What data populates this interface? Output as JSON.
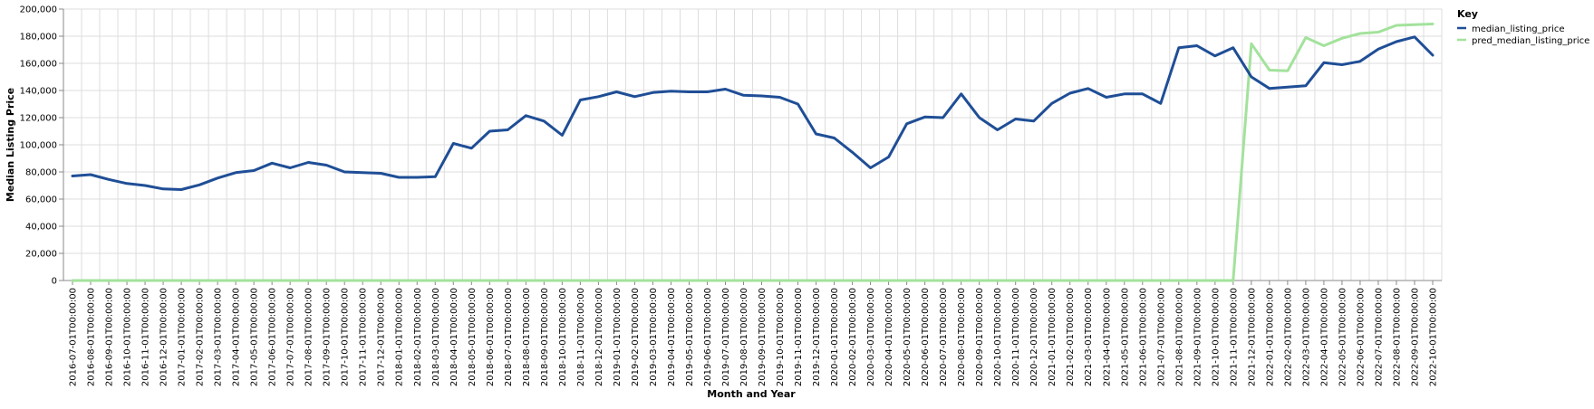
{
  "chart_data": {
    "type": "line",
    "xlabel": "Month and Year",
    "ylabel": "Median Listing Price",
    "ylim": [
      0,
      200000
    ],
    "yticks": [
      0,
      20000,
      40000,
      60000,
      80000,
      100000,
      120000,
      140000,
      160000,
      180000,
      200000
    ],
    "ytick_labels": [
      "0",
      "20,000",
      "40,000",
      "60,000",
      "80,000",
      "100,000",
      "120,000",
      "140,000",
      "160,000",
      "180,000",
      "200,000"
    ],
    "grid": true,
    "legend": {
      "title": "Key",
      "placement": "top-right"
    },
    "categories": [
      "2016-07-01T00:00:00",
      "2016-08-01T00:00:00",
      "2016-09-01T00:00:00",
      "2016-10-01T00:00:00",
      "2016-11-01T00:00:00",
      "2016-12-01T00:00:00",
      "2017-01-01T00:00:00",
      "2017-02-01T00:00:00",
      "2017-03-01T00:00:00",
      "2017-04-01T00:00:00",
      "2017-05-01T00:00:00",
      "2017-06-01T00:00:00",
      "2017-07-01T00:00:00",
      "2017-08-01T00:00:00",
      "2017-09-01T00:00:00",
      "2017-10-01T00:00:00",
      "2017-11-01T00:00:00",
      "2017-12-01T00:00:00",
      "2018-01-01T00:00:00",
      "2018-02-01T00:00:00",
      "2018-03-01T00:00:00",
      "2018-04-01T00:00:00",
      "2018-05-01T00:00:00",
      "2018-06-01T00:00:00",
      "2018-07-01T00:00:00",
      "2018-08-01T00:00:00",
      "2018-09-01T00:00:00",
      "2018-10-01T00:00:00",
      "2018-11-01T00:00:00",
      "2018-12-01T00:00:00",
      "2019-01-01T00:00:00",
      "2019-02-01T00:00:00",
      "2019-03-01T00:00:00",
      "2019-04-01T00:00:00",
      "2019-05-01T00:00:00",
      "2019-06-01T00:00:00",
      "2019-07-01T00:00:00",
      "2019-08-01T00:00:00",
      "2019-09-01T00:00:00",
      "2019-10-01T00:00:00",
      "2019-11-01T00:00:00",
      "2019-12-01T00:00:00",
      "2020-01-01T00:00:00",
      "2020-02-01T00:00:00",
      "2020-03-01T00:00:00",
      "2020-04-01T00:00:00",
      "2020-05-01T00:00:00",
      "2020-06-01T00:00:00",
      "2020-07-01T00:00:00",
      "2020-08-01T00:00:00",
      "2020-09-01T00:00:00",
      "2020-10-01T00:00:00",
      "2020-11-01T00:00:00",
      "2020-12-01T00:00:00",
      "2021-01-01T00:00:00",
      "2021-02-01T00:00:00",
      "2021-03-01T00:00:00",
      "2021-04-01T00:00:00",
      "2021-05-01T00:00:00",
      "2021-06-01T00:00:00",
      "2021-07-01T00:00:00",
      "2021-08-01T00:00:00",
      "2021-09-01T00:00:00",
      "2021-10-01T00:00:00",
      "2021-11-01T00:00:00",
      "2021-12-01T00:00:00",
      "2022-01-01T00:00:00",
      "2022-02-01T00:00:00",
      "2022-03-01T00:00:00",
      "2022-04-01T00:00:00",
      "2022-05-01T00:00:00",
      "2022-06-01T00:00:00",
      "2022-07-01T00:00:00",
      "2022-08-01T00:00:00",
      "2022-09-01T00:00:00",
      "2022-10-01T00:00:00"
    ],
    "series": [
      {
        "name": "median_listing_price",
        "color": "#1f4e96",
        "values": [
          77000,
          78000,
          74500,
          71500,
          70000,
          67500,
          67000,
          70500,
          75500,
          79500,
          81000,
          86500,
          83000,
          87000,
          85000,
          80000,
          79500,
          79000,
          76000,
          76000,
          76500,
          101000,
          97500,
          110000,
          111000,
          121500,
          117500,
          107000,
          133000,
          135500,
          139000,
          135500,
          138500,
          139500,
          139000,
          139000,
          141000,
          136500,
          136000,
          135000,
          130000,
          108000,
          105000,
          94500,
          83000,
          91000,
          115500,
          120500,
          120000,
          137500,
          120000,
          111000,
          119000,
          117500,
          130500,
          138000,
          141500,
          135000,
          137500,
          137500,
          130500,
          171500,
          173000,
          165500,
          171500,
          150000,
          141500,
          142500,
          143500,
          160500,
          159000,
          161500,
          170500,
          176000,
          179500,
          166000
        ]
      },
      {
        "name": "pred_median_listing_price",
        "color": "#a3e29c",
        "values": [
          0,
          0,
          0,
          0,
          0,
          0,
          0,
          0,
          0,
          0,
          0,
          0,
          0,
          0,
          0,
          0,
          0,
          0,
          0,
          0,
          0,
          0,
          0,
          0,
          0,
          0,
          0,
          0,
          0,
          0,
          0,
          0,
          0,
          0,
          0,
          0,
          0,
          0,
          0,
          0,
          0,
          0,
          0,
          0,
          0,
          0,
          0,
          0,
          0,
          0,
          0,
          0,
          0,
          0,
          0,
          0,
          0,
          0,
          0,
          0,
          0,
          0,
          0,
          0,
          0,
          174500,
          155000,
          154500,
          179000,
          173000,
          178500,
          182000,
          183000,
          188000,
          188500,
          189000
        ]
      }
    ]
  }
}
